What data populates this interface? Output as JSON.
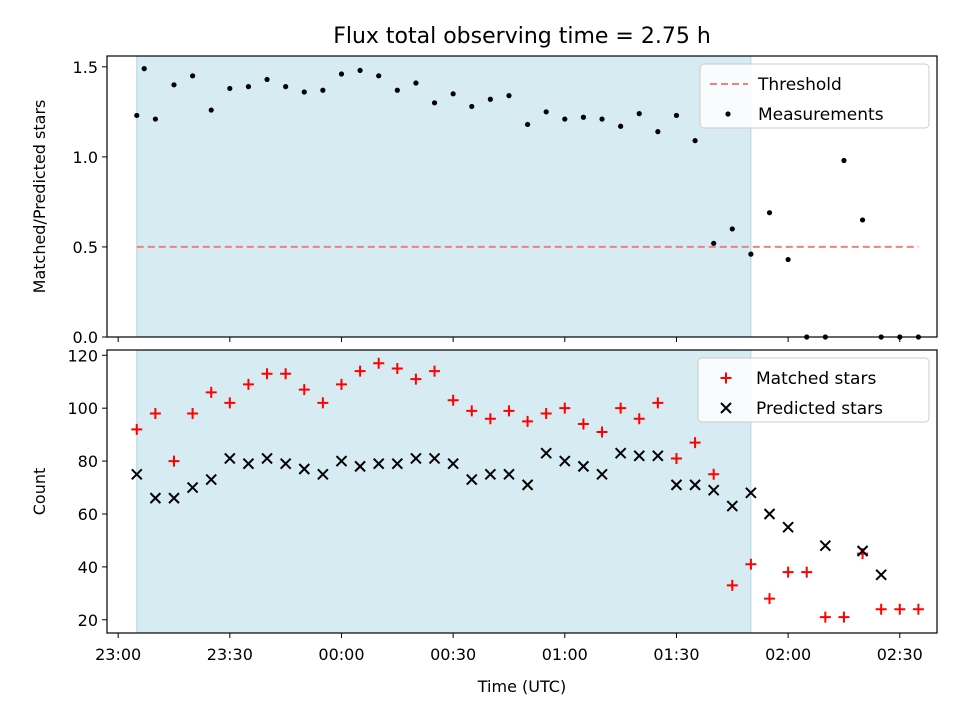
{
  "title": "Flux total observing time = 2.75 h",
  "colors": {
    "span_fill": "#add8e6",
    "threshold": "#f08080",
    "matched": "#ff0000",
    "predicted": "#000000",
    "measurement": "#000000"
  },
  "chart_data": [
    {
      "type": "scatter",
      "ylabel": "Matched/Predicted stars",
      "x_tick_labels_visible": false,
      "ylim": [
        0,
        1.56
      ],
      "yticks": [
        "0.0",
        "0.5",
        "1.0",
        "1.5"
      ],
      "ytick_values": [
        0,
        0.5,
        1.0,
        1.5
      ],
      "legend": {
        "position": "top-right",
        "entries": [
          "Threshold",
          "Measurements"
        ]
      },
      "observing_span": [
        "23:05",
        "01:50"
      ],
      "threshold": {
        "name": "Threshold",
        "value": 0.5,
        "x_start": "23:05",
        "x_end": "02:35"
      },
      "series": [
        {
          "name": "Measurements",
          "marker": "dot",
          "x": [
            "23:05",
            "23:07",
            "23:10",
            "23:15",
            "23:20",
            "23:25",
            "23:30",
            "23:35",
            "23:40",
            "23:45",
            "23:50",
            "23:55",
            "00:00",
            "00:05",
            "00:10",
            "00:15",
            "00:20",
            "00:25",
            "00:30",
            "00:35",
            "00:40",
            "00:45",
            "00:50",
            "00:55",
            "01:00",
            "01:05",
            "01:10",
            "01:15",
            "01:20",
            "01:25",
            "01:30",
            "01:35",
            "01:40",
            "01:45",
            "01:50",
            "01:55",
            "02:00",
            "02:05",
            "02:10",
            "02:15",
            "02:20",
            "02:25",
            "02:30",
            "02:35"
          ],
          "values": [
            1.23,
            1.49,
            1.21,
            1.4,
            1.45,
            1.26,
            1.38,
            1.39,
            1.43,
            1.39,
            1.36,
            1.37,
            1.46,
            1.48,
            1.45,
            1.37,
            1.41,
            1.3,
            1.35,
            1.28,
            1.32,
            1.34,
            1.18,
            1.25,
            1.21,
            1.22,
            1.21,
            1.17,
            1.24,
            1.14,
            1.23,
            1.09,
            0.52,
            0.6,
            0.46,
            0.69,
            0.43,
            0.0,
            0.0,
            0.98,
            0.65,
            0.0,
            0.0,
            0.0
          ]
        }
      ]
    },
    {
      "type": "scatter",
      "xlabel": "Time (UTC)",
      "ylabel": "Count",
      "ylim": [
        15,
        122
      ],
      "yticks": [
        "20",
        "40",
        "60",
        "80",
        "100",
        "120"
      ],
      "ytick_values": [
        20,
        40,
        60,
        80,
        100,
        120
      ],
      "xticks": [
        "23:00",
        "23:30",
        "00:00",
        "00:30",
        "01:00",
        "01:30",
        "02:00",
        "02:30"
      ],
      "legend": {
        "position": "top-right",
        "entries": [
          "Matched stars",
          "Predicted stars"
        ]
      },
      "observing_span": [
        "23:05",
        "01:50"
      ],
      "series": [
        {
          "name": "Matched stars",
          "marker": "plus",
          "x": [
            "23:05",
            "23:10",
            "23:15",
            "23:20",
            "23:25",
            "23:30",
            "23:35",
            "23:40",
            "23:45",
            "23:50",
            "23:55",
            "00:00",
            "00:05",
            "00:10",
            "00:15",
            "00:20",
            "00:25",
            "00:30",
            "00:35",
            "00:40",
            "00:45",
            "00:50",
            "00:55",
            "01:00",
            "01:05",
            "01:10",
            "01:15",
            "01:20",
            "01:25",
            "01:30",
            "01:35",
            "01:40",
            "01:45",
            "01:50",
            "01:55",
            "02:00",
            "02:05",
            "02:10",
            "02:15",
            "02:20",
            "02:25",
            "02:30",
            "02:35"
          ],
          "values": [
            92,
            98,
            80,
            98,
            106,
            102,
            109,
            113,
            113,
            107,
            102,
            109,
            114,
            117,
            115,
            111,
            114,
            103,
            99,
            96,
            99,
            95,
            98,
            100,
            94,
            91,
            100,
            96,
            102,
            81,
            87,
            75,
            33,
            41,
            28,
            38,
            38,
            21,
            21,
            45,
            24,
            24,
            24
          ]
        },
        {
          "name": "Predicted stars",
          "marker": "x",
          "x": [
            "23:05",
            "23:10",
            "23:15",
            "23:20",
            "23:25",
            "23:30",
            "23:35",
            "23:40",
            "23:45",
            "23:50",
            "23:55",
            "00:00",
            "00:05",
            "00:10",
            "00:15",
            "00:20",
            "00:25",
            "00:30",
            "00:35",
            "00:40",
            "00:45",
            "00:50",
            "00:55",
            "01:00",
            "01:05",
            "01:10",
            "01:15",
            "01:20",
            "01:25",
            "01:30",
            "01:35",
            "01:40",
            "01:45",
            "01:50",
            "01:55",
            "02:00",
            "02:10",
            "02:20",
            "02:25"
          ],
          "values": [
            75,
            66,
            66,
            70,
            73,
            81,
            79,
            81,
            79,
            77,
            75,
            80,
            78,
            79,
            79,
            81,
            81,
            79,
            73,
            75,
            75,
            71,
            83,
            80,
            78,
            75,
            83,
            82,
            82,
            71,
            71,
            69,
            63,
            68,
            60,
            55,
            48,
            46,
            37
          ]
        }
      ]
    }
  ]
}
